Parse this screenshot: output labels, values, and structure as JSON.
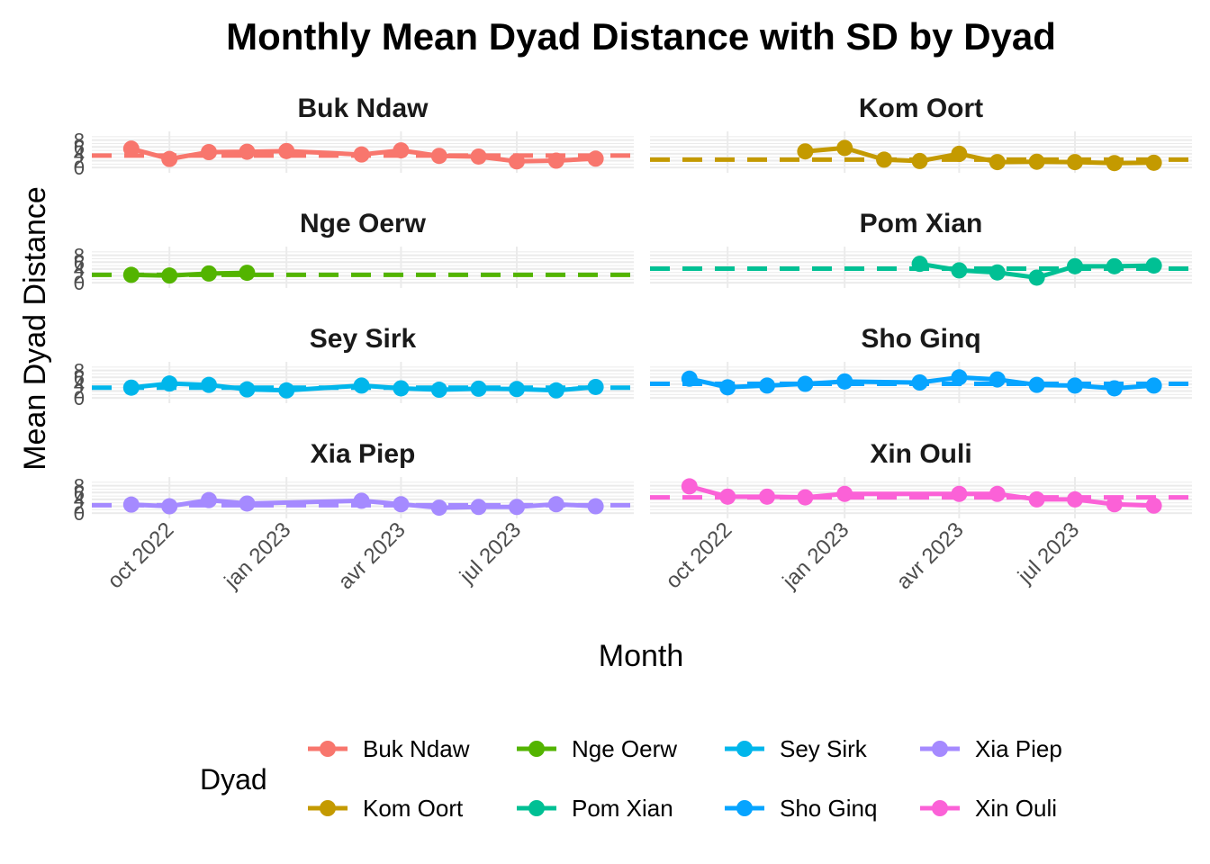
{
  "chart_data": {
    "type": "line",
    "title": "Monthly Mean Dyad Distance with SD by Dyad",
    "xlabel": "Month",
    "ylabel": "Mean Dyad Distance",
    "x_ticks": [
      {
        "date": "2022-10-01",
        "label": "oct 2022"
      },
      {
        "date": "2023-01-01",
        "label": "jan 2023"
      },
      {
        "date": "2023-04-01",
        "label": "avr 2023"
      },
      {
        "date": "2023-07-01",
        "label": "jul 2023"
      }
    ],
    "xlim": [
      "2022-08-01",
      "2023-10-01"
    ],
    "y_ticks": [
      "0",
      "2",
      "4",
      "6",
      "8"
    ],
    "ylim": [
      -1,
      10
    ],
    "legend": {
      "title": "Dyad",
      "position": "bottom"
    },
    "facets": {
      "layout": "4 rows x 2 columns",
      "free_y": false
    },
    "series": [
      {
        "name": "Buk Ndaw",
        "color": "#F8766D",
        "mean": 3.5,
        "points": [
          [
            "2022-09-01",
            5.5
          ],
          [
            "2022-10-01",
            2.5
          ],
          [
            "2022-11-01",
            4.5
          ],
          [
            "2022-12-01",
            4.6
          ],
          [
            "2023-01-01",
            4.8
          ],
          [
            "2023-03-01",
            3.8
          ],
          [
            "2023-04-01",
            5.0
          ],
          [
            "2023-05-01",
            3.4
          ],
          [
            "2023-06-01",
            3.2
          ],
          [
            "2023-07-01",
            1.8
          ],
          [
            "2023-08-01",
            2.0
          ],
          [
            "2023-09-01",
            2.6
          ]
        ]
      },
      {
        "name": "Kom Oort",
        "color": "#C49A00",
        "mean": 2.3,
        "points": [
          [
            "2022-12-01",
            4.7
          ],
          [
            "2023-01-01",
            5.7
          ],
          [
            "2023-02-01",
            2.3
          ],
          [
            "2023-03-01",
            1.9
          ],
          [
            "2023-04-01",
            4.0
          ],
          [
            "2023-05-01",
            1.6
          ],
          [
            "2023-06-01",
            1.7
          ],
          [
            "2023-07-01",
            1.6
          ],
          [
            "2023-08-01",
            1.3
          ],
          [
            "2023-09-01",
            1.4
          ]
        ]
      },
      {
        "name": "Nge Oerw",
        "color": "#53B400",
        "mean": 2.3,
        "points": [
          [
            "2022-09-01",
            2.3
          ],
          [
            "2022-10-01",
            2.1
          ],
          [
            "2022-11-01",
            2.7
          ],
          [
            "2022-12-01",
            2.9
          ]
        ]
      },
      {
        "name": "Pom Xian",
        "color": "#00C094",
        "mean": 4.1,
        "points": [
          [
            "2023-03-01",
            5.5
          ],
          [
            "2023-04-01",
            3.6
          ],
          [
            "2023-05-01",
            3.0
          ],
          [
            "2023-06-01",
            1.5
          ],
          [
            "2023-07-01",
            4.8
          ],
          [
            "2023-08-01",
            4.8
          ],
          [
            "2023-09-01",
            5.0
          ]
        ]
      },
      {
        "name": "Sey Sirk",
        "color": "#00B6EB",
        "mean": 3.0,
        "points": [
          [
            "2022-09-01",
            3.0
          ],
          [
            "2022-10-01",
            4.2
          ],
          [
            "2022-11-01",
            3.8
          ],
          [
            "2022-12-01",
            2.5
          ],
          [
            "2023-01-01",
            2.2
          ],
          [
            "2023-03-01",
            3.6
          ],
          [
            "2023-04-01",
            2.8
          ],
          [
            "2023-05-01",
            2.4
          ],
          [
            "2023-06-01",
            2.7
          ],
          [
            "2023-07-01",
            2.6
          ],
          [
            "2023-08-01",
            2.2
          ],
          [
            "2023-09-01",
            3.2
          ]
        ]
      },
      {
        "name": "Sho Ginq",
        "color": "#06A4FF",
        "mean": 4.1,
        "points": [
          [
            "2022-09-01",
            5.6
          ],
          [
            "2022-10-01",
            3.1
          ],
          [
            "2022-11-01",
            3.6
          ],
          [
            "2022-12-01",
            4.1
          ],
          [
            "2023-01-01",
            4.8
          ],
          [
            "2023-03-01",
            4.5
          ],
          [
            "2023-04-01",
            6.0
          ],
          [
            "2023-05-01",
            5.4
          ],
          [
            "2023-06-01",
            3.8
          ],
          [
            "2023-07-01",
            3.6
          ],
          [
            "2023-08-01",
            2.8
          ],
          [
            "2023-09-01",
            3.6
          ]
        ]
      },
      {
        "name": "Xia Piep",
        "color": "#A58AFF",
        "mean": 2.3,
        "points": [
          [
            "2022-09-01",
            2.5
          ],
          [
            "2022-10-01",
            2.0
          ],
          [
            "2022-11-01",
            3.8
          ],
          [
            "2022-12-01",
            2.8
          ],
          [
            "2023-03-01",
            3.6
          ],
          [
            "2023-04-01",
            2.6
          ],
          [
            "2023-05-01",
            1.6
          ],
          [
            "2023-06-01",
            1.8
          ],
          [
            "2023-07-01",
            1.8
          ],
          [
            "2023-08-01",
            2.6
          ],
          [
            "2023-09-01",
            2.0
          ]
        ]
      },
      {
        "name": "Xin Ouli",
        "color": "#FB61D7",
        "mean": 4.6,
        "points": [
          [
            "2022-09-01",
            7.8
          ],
          [
            "2022-10-01",
            4.8
          ],
          [
            "2022-11-01",
            4.8
          ],
          [
            "2022-12-01",
            4.6
          ],
          [
            "2023-01-01",
            5.6
          ],
          [
            "2023-04-01",
            5.6
          ],
          [
            "2023-05-01",
            5.6
          ],
          [
            "2023-06-01",
            4.0
          ],
          [
            "2023-07-01",
            4.0
          ],
          [
            "2023-08-01",
            2.6
          ],
          [
            "2023-09-01",
            2.2
          ]
        ]
      }
    ]
  }
}
